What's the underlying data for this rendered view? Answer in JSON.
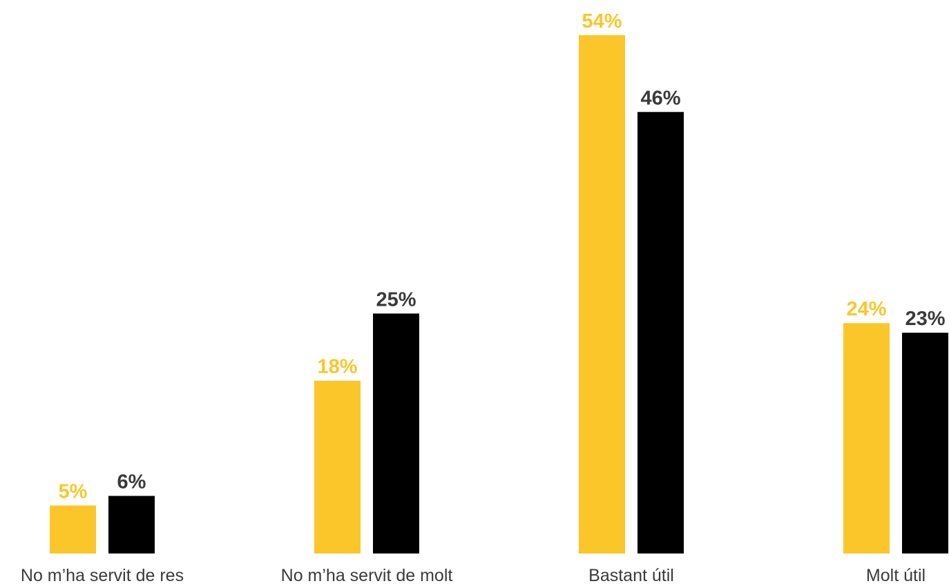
{
  "chart_data": {
    "type": "bar",
    "categories": [
      "No m’ha servit de res",
      "No m’ha servit de molt",
      "Bastant útil",
      "Molt útil"
    ],
    "series": [
      {
        "values": [
          5,
          18,
          54,
          24
        ],
        "labels": [
          "5%",
          "18%",
          "54%",
          "24%"
        ],
        "color": "#FBC62A"
      },
      {
        "values": [
          6,
          25,
          46,
          23
        ],
        "labels": [
          "6%",
          "25%",
          "46%",
          "23%"
        ],
        "color": "#000000"
      }
    ],
    "value_label_colors": [
      "#FBC62A",
      "#3a3a3a"
    ],
    "ylim": [
      0,
      54
    ],
    "grid": false,
    "legend": "none"
  }
}
